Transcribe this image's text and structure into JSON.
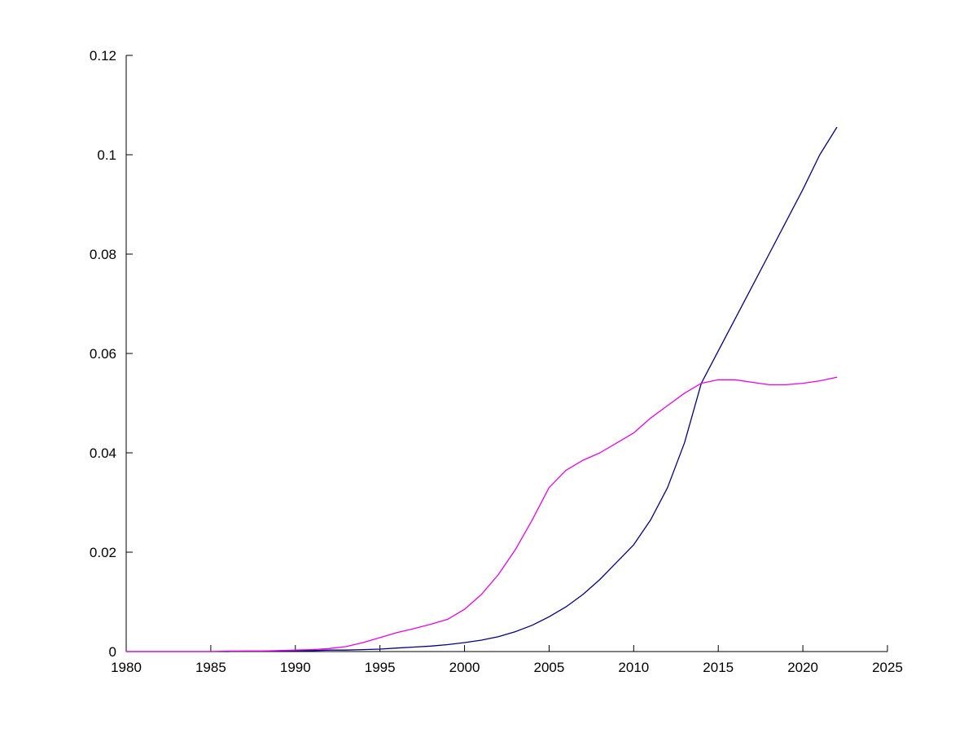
{
  "chart_data": {
    "type": "line",
    "title": "",
    "xlabel": "",
    "ylabel": "",
    "xlim": [
      1980,
      2025
    ],
    "ylim": [
      0,
      0.12
    ],
    "x_ticks": [
      1980,
      1985,
      1990,
      1995,
      2000,
      2005,
      2010,
      2015,
      2020,
      2025
    ],
    "y_ticks": [
      "0",
      "0.02",
      "0.04",
      "0.06",
      "0.08",
      "0.1",
      "0.12"
    ],
    "grid": false,
    "legend": "none",
    "box": false,
    "background_color": "#ffffff",
    "axis_color": "#000000",
    "x": [
      1980,
      1981,
      1982,
      1983,
      1984,
      1985,
      1986,
      1987,
      1988,
      1989,
      1990,
      1991,
      1992,
      1993,
      1994,
      1995,
      1996,
      1997,
      1998,
      1999,
      2000,
      2001,
      2002,
      2003,
      2004,
      2005,
      2006,
      2007,
      2008,
      2009,
      2010,
      2011,
      2012,
      2013,
      2014,
      2015,
      2016,
      2017,
      2018,
      2019,
      2020,
      2021,
      2022
    ],
    "series": [
      {
        "name": "dark-blue-line",
        "color": "#00008b",
        "values": [
          0,
          0,
          0,
          0,
          0,
          0,
          0,
          0.0001,
          0.0001,
          0.0001,
          0.0002,
          0.0002,
          0.0003,
          0.0003,
          0.0004,
          0.0005,
          0.0007,
          0.0009,
          0.0011,
          0.0014,
          0.0018,
          0.0023,
          0.003,
          0.004,
          0.0053,
          0.007,
          0.009,
          0.0115,
          0.0145,
          0.018,
          0.0215,
          0.0265,
          0.033,
          0.042,
          0.054,
          0.0605,
          0.067,
          0.0735,
          0.08,
          0.0865,
          0.093,
          0.1,
          0.1055
        ]
      },
      {
        "name": "magenta-line",
        "color": "#ee00ee",
        "values": [
          0,
          0,
          0,
          0,
          0,
          0,
          0.0001,
          0.0001,
          0.0001,
          0.0002,
          0.0003,
          0.0004,
          0.0006,
          0.001,
          0.0018,
          0.0028,
          0.0038,
          0.0046,
          0.0055,
          0.0065,
          0.0085,
          0.0115,
          0.0155,
          0.0205,
          0.0265,
          0.033,
          0.0365,
          0.0385,
          0.04,
          0.042,
          0.044,
          0.047,
          0.0495,
          0.052,
          0.054,
          0.0547,
          0.0547,
          0.0542,
          0.0537,
          0.0537,
          0.054,
          0.0545,
          0.0552
        ]
      }
    ]
  }
}
